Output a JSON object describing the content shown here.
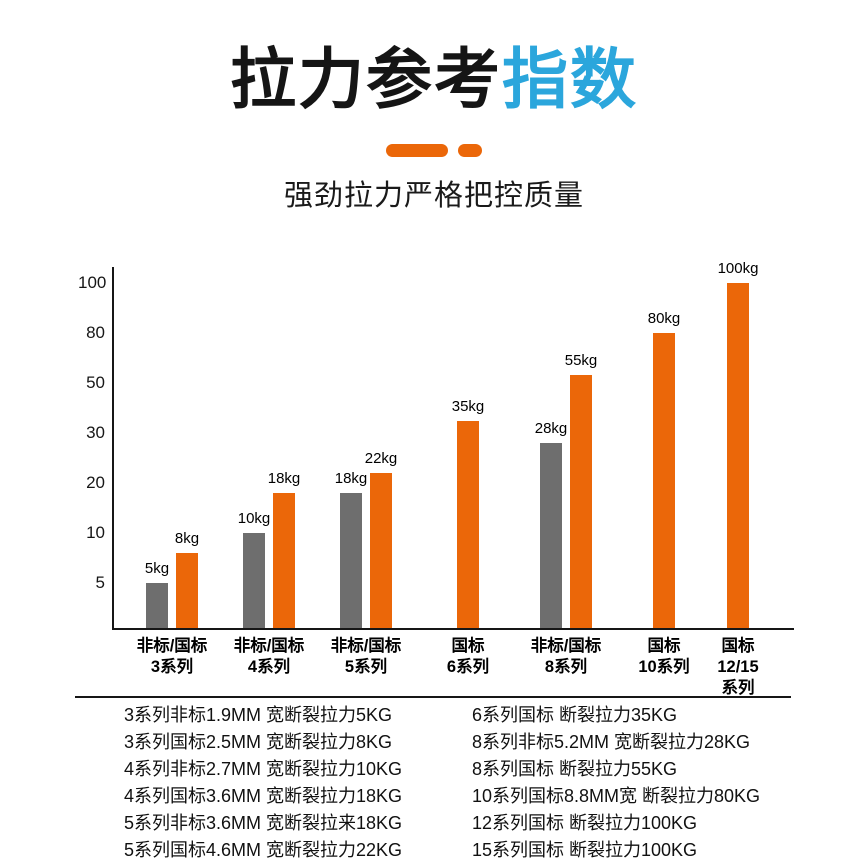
{
  "header": {
    "title_black": "拉力参考",
    "title_accent": "指数",
    "subtitle": "强劲拉力严格把控质量"
  },
  "colors": {
    "accent_orange": "#EB6709",
    "accent_blue": "#2BA6DC",
    "bar_gray": "#6E6E6E",
    "text_dark": "#111111"
  },
  "chart_data": {
    "type": "bar",
    "title": "拉力参考指数",
    "subtitle": "强劲拉力严格把控质量",
    "unit": "kg",
    "ylabel": "",
    "xlabel": "",
    "yticks": [
      5,
      10,
      20,
      30,
      50,
      80,
      100
    ],
    "ylim": [
      0,
      100
    ],
    "grid": false,
    "legend_position": "none",
    "series": [
      {
        "name": "非标",
        "color_key": "gray"
      },
      {
        "name": "国标",
        "color_key": "orange"
      }
    ],
    "groups": [
      {
        "category_lines": [
          "非标/国标",
          "3系列"
        ],
        "bars": [
          {
            "series": "非标",
            "value": 5,
            "label": "5kg",
            "color_key": "gray"
          },
          {
            "series": "国标",
            "value": 8,
            "label": "8kg",
            "color_key": "orange"
          }
        ]
      },
      {
        "category_lines": [
          "非标/国标",
          "4系列"
        ],
        "bars": [
          {
            "series": "非标",
            "value": 10,
            "label": "10kg",
            "color_key": "gray"
          },
          {
            "series": "国标",
            "value": 18,
            "label": "18kg",
            "color_key": "orange"
          }
        ]
      },
      {
        "category_lines": [
          "非标/国标",
          "5系列"
        ],
        "bars": [
          {
            "series": "非标",
            "value": 18,
            "label": "18kg",
            "color_key": "gray"
          },
          {
            "series": "国标",
            "value": 22,
            "label": "22kg",
            "color_key": "orange"
          }
        ]
      },
      {
        "category_lines": [
          "国标",
          "6系列"
        ],
        "bars": [
          {
            "series": "国标",
            "value": 35,
            "label": "35kg",
            "color_key": "orange"
          }
        ]
      },
      {
        "category_lines": [
          "非标/国标",
          "8系列"
        ],
        "bars": [
          {
            "series": "非标",
            "value": 28,
            "label": "28kg",
            "color_key": "gray"
          },
          {
            "series": "国标",
            "value": 55,
            "label": "55kg",
            "color_key": "orange"
          }
        ]
      },
      {
        "category_lines": [
          "国标",
          "10系列"
        ],
        "bars": [
          {
            "series": "国标",
            "value": 80,
            "label": "80kg",
            "color_key": "orange"
          }
        ]
      },
      {
        "category_lines": [
          "国标",
          "12/15",
          "系列"
        ],
        "bars": [
          {
            "series": "国标",
            "value": 100,
            "label": "100kg",
            "color_key": "orange"
          }
        ]
      }
    ]
  },
  "specs": {
    "left": [
      "3系列非标1.9MM 宽断裂拉力5KG",
      "3系列国标2.5MM 宽断裂拉力8KG",
      "4系列非标2.7MM 宽断裂拉力10KG",
      "4系列国标3.6MM 宽断裂拉力18KG",
      "5系列非标3.6MM 宽断裂拉来18KG",
      "5系列国标4.6MM 宽断裂拉力22KG"
    ],
    "right": [
      "6系列国标 断裂拉力35KG",
      "8系列非标5.2MM 宽断裂拉力28KG",
      "8系列国标 断裂拉力55KG",
      "10系列国标8.8MM宽 断裂拉力80KG",
      "12系列国标 断裂拉力100KG",
      "15系列国标 断裂拉力100KG"
    ]
  }
}
